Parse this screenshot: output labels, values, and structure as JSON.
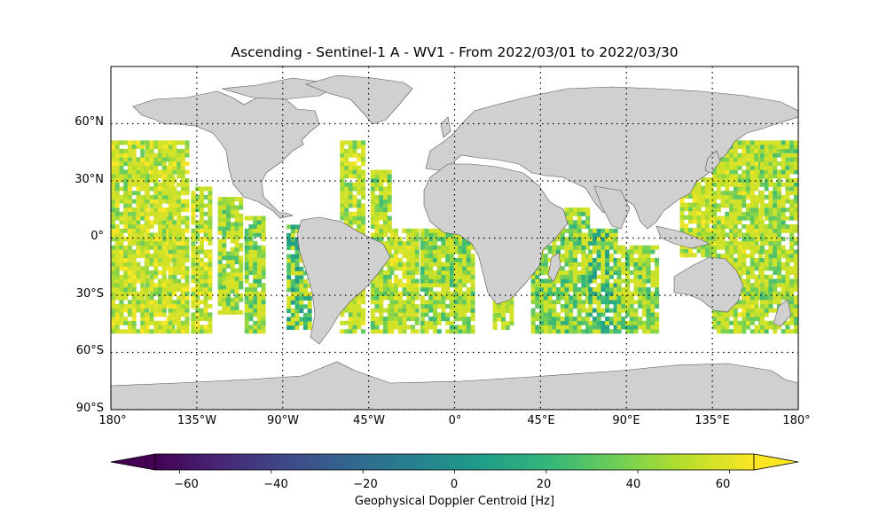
{
  "title": "Ascending - Sentinel-1 A - WV1 - From 2022/03/01 to 2022/03/30",
  "map": {
    "projection": "PlateCarree",
    "lon_range": [
      -180,
      180
    ],
    "lat_range": [
      -90,
      90
    ],
    "land_color": "#d0d0d0",
    "gridlines": "dotted",
    "lat_ticks": [
      {
        "value": 60,
        "label": "60°N"
      },
      {
        "value": 30,
        "label": "30°N"
      },
      {
        "value": 0,
        "label": "0°"
      },
      {
        "value": -30,
        "label": "30°S"
      },
      {
        "value": -60,
        "label": "60°S"
      },
      {
        "value": -90,
        "label": "90°S"
      }
    ],
    "lon_ticks": [
      {
        "value": -180,
        "label": "180°"
      },
      {
        "value": -135,
        "label": "135°W"
      },
      {
        "value": -90,
        "label": "90°W"
      },
      {
        "value": -45,
        "label": "45°W"
      },
      {
        "value": 0,
        "label": "0°"
      },
      {
        "value": 45,
        "label": "45°E"
      },
      {
        "value": 90,
        "label": "90°E"
      },
      {
        "value": 135,
        "label": "135°E"
      },
      {
        "value": 180,
        "label": "180°"
      }
    ]
  },
  "chart_data": {
    "type": "heatmap",
    "title": "Ascending - Sentinel-1 A - WV1 - From 2022/03/01 to 2022/03/30",
    "variable": "Geophysical Doppler Centroid [Hz]",
    "coverage_lat": [
      -50,
      50
    ],
    "colormap": "viridis",
    "vmin": -75,
    "vmax": 75,
    "swaths": [
      {
        "lon": [
          -180,
          -162
        ],
        "lat": [
          -50,
          50
        ],
        "mean": 58
      },
      {
        "lon": [
          -162,
          -148
        ],
        "lat": [
          -50,
          50
        ],
        "mean": 60
      },
      {
        "lon": [
          -150,
          -140
        ],
        "lat": [
          -50,
          50
        ],
        "mean": 58
      },
      {
        "lon": [
          -138,
          -128
        ],
        "lat": [
          -50,
          25
        ],
        "mean": 60
      },
      {
        "lon": [
          -124,
          -112
        ],
        "lat": [
          -40,
          20
        ],
        "mean": 50
      },
      {
        "lon": [
          -110,
          -100
        ],
        "lat": [
          -50,
          10
        ],
        "mean": 45
      },
      {
        "lon": [
          -88,
          -76
        ],
        "lat": [
          -48,
          5
        ],
        "mean": 25
      },
      {
        "lon": [
          -60,
          -48
        ],
        "lat": [
          -50,
          50
        ],
        "mean": 55
      },
      {
        "lon": [
          -44,
          -34
        ],
        "lat": [
          -50,
          35
        ],
        "mean": 50
      },
      {
        "lon": [
          -34,
          -20
        ],
        "lat": [
          -50,
          5
        ],
        "mean": 55
      },
      {
        "lon": [
          -18,
          10
        ],
        "lat": [
          -50,
          5
        ],
        "mean": 45
      },
      {
        "lon": [
          20,
          30
        ],
        "lat": [
          -48,
          -30
        ],
        "mean": 50
      },
      {
        "lon": [
          40,
          70
        ],
        "lat": [
          -50,
          15
        ],
        "mean": 40
      },
      {
        "lon": [
          70,
          85
        ],
        "lat": [
          -50,
          5
        ],
        "mean": 25
      },
      {
        "lon": [
          85,
          105
        ],
        "lat": [
          -50,
          -5
        ],
        "mean": 45
      },
      {
        "lon": [
          118,
          135
        ],
        "lat": [
          -10,
          30
        ],
        "mean": 58
      },
      {
        "lon": [
          135,
          160
        ],
        "lat": [
          -50,
          50
        ],
        "mean": 55
      },
      {
        "lon": [
          160,
          180
        ],
        "lat": [
          -50,
          50
        ],
        "mean": 48
      }
    ]
  },
  "colorbar": {
    "label": "Geophysical Doppler Centroid [Hz]",
    "ticks": [
      {
        "value": -60,
        "label": "−60"
      },
      {
        "value": -40,
        "label": "−40"
      },
      {
        "value": -20,
        "label": "−20"
      },
      {
        "value": 0,
        "label": "0"
      },
      {
        "value": 20,
        "label": "20"
      },
      {
        "value": 40,
        "label": "40"
      },
      {
        "value": 60,
        "label": "60"
      }
    ],
    "range": [
      -75,
      75
    ],
    "extend": "both",
    "stops": [
      "#440154",
      "#482878",
      "#3e4989",
      "#31688e",
      "#26828e",
      "#1f9e89",
      "#35b779",
      "#6ece58",
      "#b5de2b",
      "#fde725"
    ]
  }
}
